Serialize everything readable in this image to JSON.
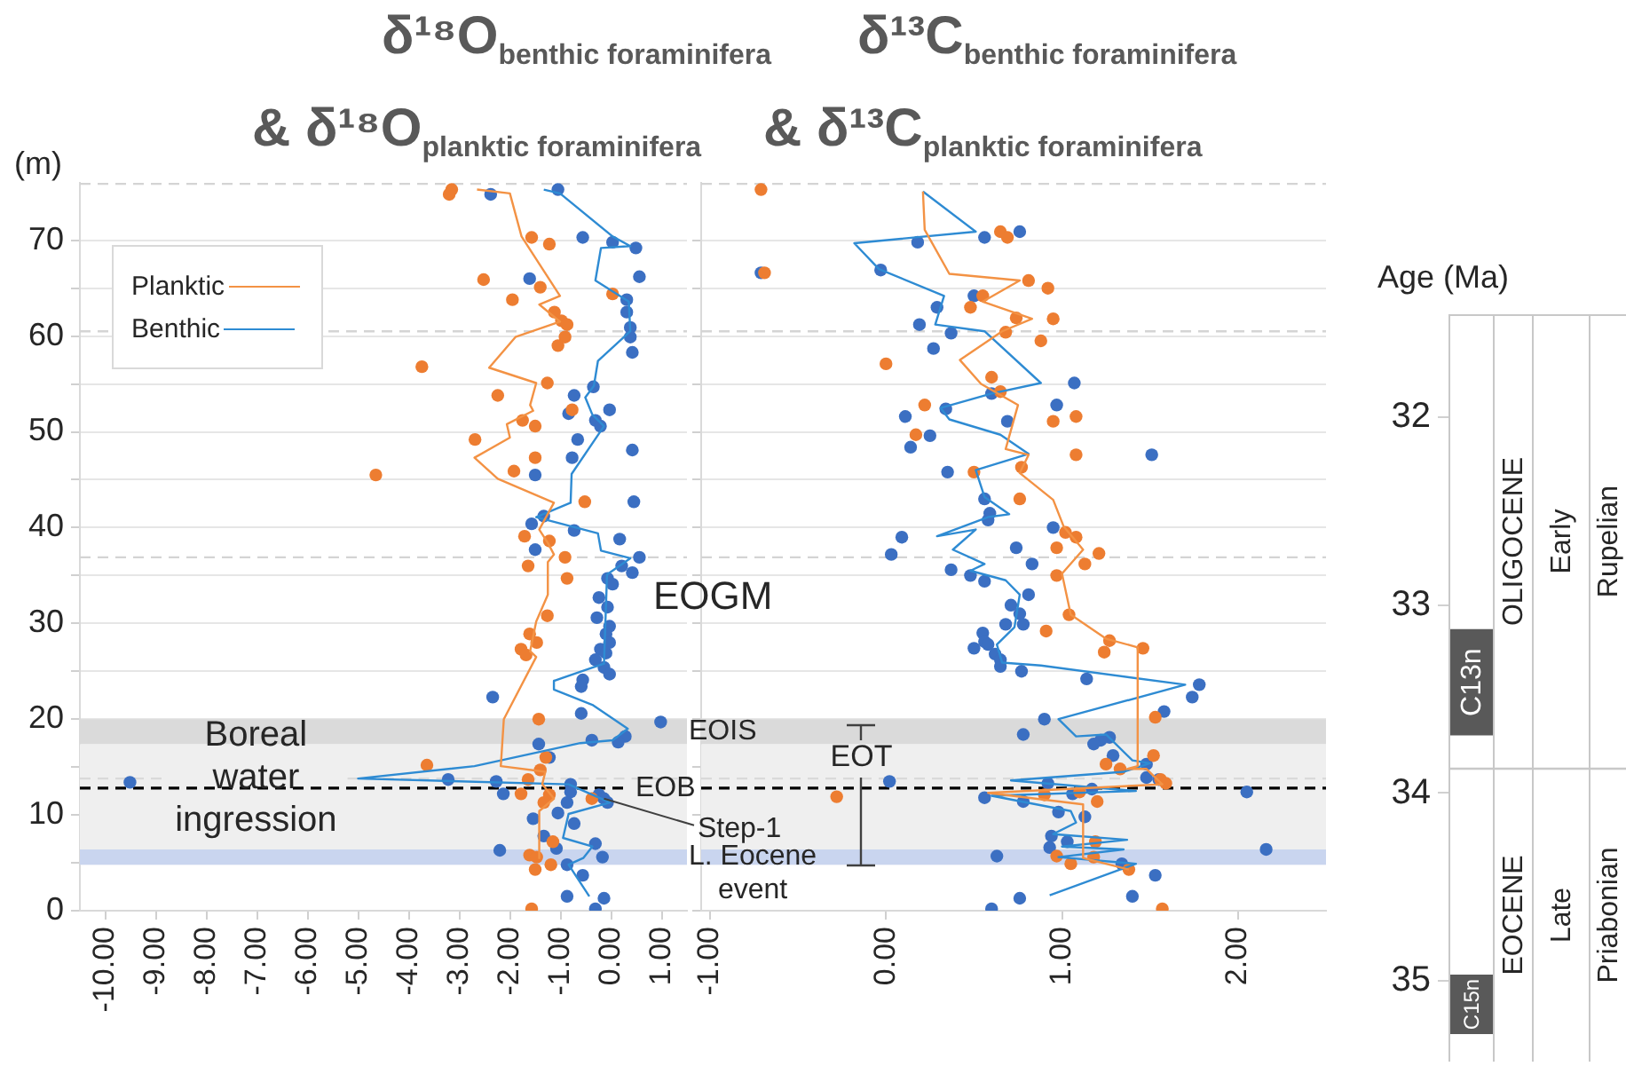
{
  "chart_data": [
    {
      "type": "line",
      "title": "δ¹⁸O$_{benthic foraminifera}$",
      "subtitle": "& δ¹⁸O$_{planktic foraminifera}$",
      "ylabel": "(m)",
      "legend": "top left",
      "grid": "y",
      "xlim": [
        -10.5,
        1.5
      ],
      "xticks": [
        {
          "value": -10,
          "label": "-10.00"
        },
        {
          "value": -9,
          "label": "-9.00"
        },
        {
          "value": -8,
          "label": "-8.00"
        },
        {
          "value": -7,
          "label": "-7.00"
        },
        {
          "value": -6,
          "label": "-6.00"
        },
        {
          "value": -5,
          "label": "-5.00"
        },
        {
          "value": -4,
          "label": "-4.00"
        },
        {
          "value": -3,
          "label": "-3.00"
        },
        {
          "value": -2,
          "label": "-2.00"
        },
        {
          "value": -1,
          "label": "-1.00"
        },
        {
          "value": 0,
          "label": "0.00"
        },
        {
          "value": 1,
          "label": "1.00"
        }
      ],
      "ylim": [
        0,
        76
      ],
      "yticks": [
        0,
        {
          "value": 5,
          "label": null
        },
        10,
        {
          "value": 15,
          "label": null
        },
        20,
        {
          "value": 25,
          "label": null
        },
        30,
        {
          "value": 35,
          "label": null
        },
        40,
        {
          "value": 45,
          "label": null
        },
        50,
        {
          "value": 55,
          "label": null
        },
        60,
        {
          "value": 65,
          "label": null
        },
        70
      ],
      "bands": [
        {
          "axis": "y",
          "from": 4.8,
          "to": 17.4,
          "color": "#efefef"
        },
        {
          "axis": "y",
          "from": 17.4,
          "to": 20.0,
          "color": "#dadada",
          "label": "EOIS"
        },
        {
          "axis": "y",
          "from": 4.8,
          "to": 6.4,
          "color": "#c9d5ef",
          "label": "L. Eocene event"
        }
      ],
      "ref_lines": [
        {
          "axis": "y",
          "value": 75.9,
          "color": "#d4d4d4",
          "line_style": "dashed"
        },
        {
          "axis": "y",
          "value": 60.5,
          "color": "#d4d4d4",
          "line_style": "dashed"
        },
        {
          "axis": "y",
          "value": 36.9,
          "color": "#d4d4d4",
          "line_style": "dashed"
        },
        {
          "axis": "y",
          "value": 13.8,
          "color": "#d9d9d9",
          "line_style": "dashed",
          "label": "Boreal water ingression"
        },
        {
          "axis": "y",
          "value": 12.8,
          "color": "#000000",
          "line_style": "dashed",
          "label": "EOB"
        }
      ],
      "annotations": [
        "EOGM",
        {
          "text": "Step-1",
          "x": -0.14,
          "y": 11.7
        }
      ],
      "series": [
        {
          "name": "Planktic",
          "type": "line",
          "color": "#f39244",
          "marker": "none",
          "x": [
            -2.65,
            -2.0,
            -1.77,
            -1.01,
            -1.42,
            -1.01,
            -1.89,
            -2.41,
            -1.48,
            -1.6,
            -1.54,
            -2.06,
            -2.0,
            -2.7,
            -2.24,
            -1.13,
            -1.42,
            -1.25,
            -1.13,
            -1.25,
            -1.25,
            -1.48,
            -1.6,
            -1.48,
            -2.12,
            -2.18,
            -1.3,
            -1.36,
            -1.13,
            -1.42,
            -1.42
          ],
          "values": [
            75.3,
            74.9,
            70.4,
            64.2,
            63.3,
            61.5,
            59.9,
            56.7,
            55.1,
            52.8,
            52.2,
            50.8,
            49.4,
            47.3,
            45.1,
            42.6,
            39.8,
            38.4,
            37.2,
            36.4,
            33.0,
            30.2,
            27.1,
            26.5,
            20.0,
            15.1,
            14.5,
            13.2,
            11.7,
            10.4,
            5.5
          ]
        },
        {
          "name": "Benthic",
          "type": "line",
          "color": "#2e8bd3",
          "marker": "none",
          "x": [
            -1.33,
            -1.01,
            0.03,
            0.38,
            -0.2,
            -0.31,
            0.35,
            0.38,
            -0.26,
            -0.34,
            -0.51,
            -0.37,
            -0.14,
            -0.78,
            -0.8,
            -1.48,
            -0.26,
            -0.2,
            0.38,
            -0.08,
            -0.14,
            -1.13,
            -1.13,
            -0.37,
            0.33,
            0.03,
            -0.61,
            -2.7,
            -5.0,
            -0.84,
            -0.02,
            -0.84,
            -0.95,
            -0.37,
            -0.55,
            -0.84,
            -0.43
          ],
          "values": [
            75.3,
            74.9,
            70.4,
            69.4,
            69.2,
            65.8,
            63.6,
            60.5,
            57.4,
            54.8,
            53.6,
            51.8,
            50.6,
            45.6,
            42.6,
            41.1,
            39.4,
            37.6,
            36.8,
            35.1,
            25.8,
            24.0,
            23.1,
            21.5,
            19.0,
            17.8,
            17.5,
            15.1,
            13.8,
            13.2,
            11.3,
            10.1,
            7.6,
            6.7,
            5.5,
            4.8,
            1.5
          ]
        },
        {
          "type": "scatter",
          "color": "#ed7d31",
          "marker": "circle",
          "x": [
            -3.15,
            -3.2,
            -1.57,
            -1.22,
            -2.52,
            -1.4,
            0.03,
            -1.95,
            -1.12,
            -0.98,
            -0.87,
            -0.91,
            -1.05,
            -3.74,
            -1.26,
            -2.24,
            -0.77,
            -1.75,
            -1.5,
            -2.69,
            -1.5,
            -1.92,
            -4.65,
            -0.52,
            -1.71,
            -1.22,
            -0.91,
            -1.64,
            -0.87,
            -1.26,
            -1.61,
            -1.47,
            -1.78,
            -1.68,
            -1.43,
            -3.64,
            -1.29,
            -1.4,
            -1.64,
            -1.78,
            -1.22,
            -1.33,
            -0.38,
            -1.15,
            -1.61,
            -1.47,
            -1.19,
            -1.5,
            -1.57
          ],
          "values": [
            75.3,
            74.8,
            70.3,
            69.6,
            65.9,
            65.1,
            64.4,
            63.8,
            62.5,
            61.6,
            61.2,
            59.9,
            59.0,
            56.8,
            55.1,
            53.8,
            52.3,
            51.2,
            50.6,
            49.2,
            47.3,
            45.9,
            45.5,
            42.7,
            39.1,
            38.6,
            36.9,
            36.0,
            34.7,
            30.8,
            28.9,
            28.0,
            27.3,
            26.7,
            20.0,
            15.2,
            16.0,
            14.7,
            13.7,
            12.2,
            12.1,
            11.3,
            11.7,
            7.2,
            5.8,
            5.6,
            4.8,
            4.3,
            0.2
          ]
        },
        {
          "type": "scatter",
          "color": "#3b6fc2",
          "marker": "circle",
          "x": [
            -1.05,
            -2.38,
            -0.56,
            0.03,
            0.49,
            0.56,
            -1.61,
            0.31,
            0.31,
            0.38,
            0.38,
            0.42,
            -0.35,
            -0.73,
            -0.03,
            -0.84,
            -0.31,
            -0.21,
            -0.66,
            0.42,
            -0.77,
            -1.5,
            0.45,
            -1.33,
            -1.57,
            -0.73,
            0.17,
            -1.5,
            0.56,
            0.21,
            0.42,
            -0.07,
            0.03,
            -0.24,
            -0.07,
            -0.28,
            -0.03,
            -0.1,
            -0.03,
            -0.21,
            -0.1,
            -0.31,
            -0.14,
            -0.03,
            -0.56,
            -0.59,
            -2.34,
            -0.59,
            0.98,
            0.28,
            -0.38,
            0.14,
            -1.43,
            -1.22,
            -9.51,
            -3.22,
            -2.27,
            -2.13,
            -0.8,
            -0.8,
            -0.87,
            -0.24,
            -0.14,
            -0.07,
            -1.05,
            -1.54,
            -0.73,
            -1.33,
            -1.08,
            -0.31,
            -0.17,
            -2.2,
            -0.87,
            -0.56,
            -0.87,
            -0.14,
            -0.31
          ],
          "values": [
            75.3,
            74.8,
            70.3,
            69.8,
            69.2,
            66.2,
            66.0,
            63.8,
            62.5,
            60.9,
            59.9,
            58.3,
            54.7,
            53.8,
            52.3,
            51.9,
            51.2,
            50.6,
            49.2,
            48.1,
            47.3,
            45.5,
            42.7,
            41.2,
            40.4,
            39.7,
            38.8,
            37.7,
            36.9,
            36.0,
            35.3,
            34.7,
            34.1,
            32.7,
            31.7,
            30.6,
            29.7,
            28.9,
            28.0,
            27.3,
            26.9,
            26.2,
            25.4,
            24.7,
            24.1,
            23.4,
            22.3,
            20.6,
            19.7,
            18.2,
            17.8,
            17.6,
            17.4,
            16.0,
            13.4,
            13.7,
            13.5,
            12.2,
            13.2,
            12.4,
            11.3,
            12.1,
            11.7,
            11.3,
            10.2,
            9.6,
            9.1,
            7.8,
            6.5,
            7.0,
            5.6,
            6.3,
            4.8,
            3.7,
            1.5,
            1.3,
            0.2
          ]
        }
      ]
    },
    {
      "type": "line",
      "title": "δ¹³C$_{benthic foraminifera}$",
      "subtitle": "& δ¹³C$_{planktic foraminifera}$",
      "legend": false,
      "grid": "y",
      "tick_labels": "x",
      "xlim": [
        -1.05,
        2.5
      ],
      "xticks": [
        {
          "value": -1,
          "label": "-1.00"
        },
        {
          "value": 0,
          "label": "0.00"
        },
        {
          "value": 1,
          "label": "1.00"
        },
        {
          "value": 2,
          "label": "2.00"
        }
      ],
      "ylim": [
        0,
        76
      ],
      "yticks": [
        0,
        5,
        10,
        15,
        20,
        25,
        30,
        35,
        40,
        45,
        50,
        55,
        60,
        65,
        70
      ],
      "bands": [
        {
          "axis": "y",
          "from": 4.8,
          "to": 17.4,
          "color": "#efefef"
        },
        {
          "axis": "y",
          "from": 17.4,
          "to": 20.0,
          "color": "#dadada"
        },
        {
          "axis": "y",
          "from": 4.8,
          "to": 6.4,
          "color": "#c9d5ef"
        }
      ],
      "annotations": [
        {
          "text": "EOT",
          "x": -0.14,
          "y": 4.8
        }
      ],
      "ref_lines": [
        {
          "axis": "y",
          "value": 75.9,
          "color": "#d4d4d4",
          "line_style": "dashed"
        },
        {
          "axis": "y",
          "value": 60.5,
          "color": "#d4d4d4",
          "line_style": "dashed"
        },
        {
          "axis": "y",
          "value": 36.9,
          "color": "#d4d4d4",
          "line_style": "dashed"
        },
        {
          "axis": "y",
          "value": 13.8,
          "color": "#d9d9d9",
          "line_style": "dashed"
        },
        {
          "axis": "y",
          "value": 12.8,
          "color": "#000000",
          "line_style": "dashed"
        }
      ],
      "series": [
        {
          "type": "line",
          "color": "#f39244",
          "marker": "none",
          "x": [
            0.21,
            0.22,
            0.36,
            0.76,
            0.55,
            0.83,
            0.66,
            0.42,
            0.54,
            0.75,
            0.68,
            0.81,
            0.76,
            0.95,
            1.01,
            1.12,
            1.0,
            1.05,
            1.25,
            1.43,
            1.43,
            1.37,
            1.48,
            1.57,
            0.58,
            1.12,
            1.12,
            1.38
          ],
          "values": [
            75.1,
            71.1,
            66.5,
            65.8,
            63.6,
            61.8,
            60.5,
            57.5,
            55.0,
            52.8,
            48.2,
            47.6,
            45.7,
            42.9,
            40.1,
            37.7,
            35.2,
            30.9,
            28.4,
            27.5,
            15.1,
            14.8,
            14.8,
            13.2,
            12.3,
            11.1,
            5.5,
            4.3
          ]
        },
        {
          "type": "line",
          "color": "#2e8bd3",
          "marker": "none",
          "x": [
            0.21,
            0.51,
            -0.18,
            -0.04,
            0.33,
            0.28,
            0.56,
            0.88,
            0.6,
            0.31,
            0.36,
            0.65,
            0.81,
            0.51,
            0.56,
            0.7,
            0.58,
            0.29,
            0.51,
            0.38,
            0.56,
            0.48,
            0.68,
            0.76,
            0.73,
            0.63,
            0.66,
            0.88,
            1.7,
            0.98,
            1.08,
            1.25,
            1.4,
            1.5,
            1.35,
            0.71,
            1.42,
            0.6,
            1.05,
            1.08,
            0.95,
            1.37,
            1.0,
            1.35,
            0.98,
            1.42,
            0.93
          ],
          "values": [
            75.1,
            70.9,
            69.7,
            67.0,
            64.2,
            61.2,
            60.5,
            55.1,
            54.0,
            52.5,
            51.3,
            49.7,
            47.7,
            46.0,
            43.2,
            41.4,
            41.1,
            39.1,
            39.8,
            37.7,
            36.2,
            35.5,
            34.5,
            33.0,
            29.6,
            27.8,
            25.9,
            25.6,
            23.6,
            20.0,
            18.2,
            18.4,
            15.7,
            15.4,
            14.5,
            13.6,
            12.5,
            12.0,
            10.4,
            9.2,
            8.0,
            7.4,
            6.7,
            6.4,
            5.6,
            4.9,
            1.6
          ]
        },
        {
          "type": "scatter",
          "color": "#ed7d31",
          "marker": "circle",
          "x": [
            0.65,
            0.69,
            0.81,
            0.92,
            0.55,
            0.48,
            0.74,
            0.95,
            0.68,
            0.88,
            0.0,
            0.6,
            0.65,
            0.22,
            1.08,
            0.95,
            0.17,
            1.08,
            0.77,
            0.5,
            0.76,
            1.02,
            1.08,
            0.97,
            1.21,
            1.13,
            0.97,
            1.04,
            0.91,
            1.27,
            1.46,
            1.24,
            1.53,
            1.52,
            1.25,
            1.33,
            1.56,
            1.59,
            -0.28,
            0.9,
            1.1,
            1.2,
            1.19,
            0.97,
            1.18,
            1.05,
            1.38,
            1.57,
            -0.71,
            -0.69
          ],
          "values": [
            70.9,
            70.3,
            65.8,
            65.0,
            64.2,
            63.0,
            61.9,
            61.8,
            60.4,
            59.5,
            57.1,
            55.7,
            54.2,
            52.8,
            51.6,
            51.1,
            49.7,
            47.6,
            46.3,
            45.8,
            43.0,
            39.5,
            39.0,
            37.9,
            37.3,
            36.2,
            35.0,
            30.9,
            29.2,
            28.2,
            27.4,
            27.0,
            20.2,
            16.2,
            15.3,
            14.8,
            13.7,
            13.3,
            11.9,
            12.1,
            12.4,
            11.4,
            7.2,
            5.7,
            5.6,
            4.9,
            4.3,
            0.2,
            75.3,
            66.6
          ]
        },
        {
          "type": "scatter",
          "color": "#3b6fc2",
          "marker": "circle",
          "x": [
            0.18,
            0.56,
            0.76,
            -0.03,
            0.5,
            0.29,
            0.19,
            0.37,
            0.27,
            1.07,
            0.6,
            0.97,
            0.34,
            0.11,
            0.69,
            0.25,
            0.14,
            1.51,
            0.35,
            0.56,
            0.59,
            0.58,
            0.95,
            0.09,
            0.03,
            0.74,
            0.83,
            0.37,
            0.48,
            0.56,
            0.81,
            0.71,
            0.76,
            0.68,
            0.78,
            0.55,
            0.56,
            0.5,
            0.58,
            0.62,
            0.65,
            0.65,
            0.77,
            1.14,
            1.78,
            1.74,
            1.58,
            0.9,
            0.78,
            1.27,
            1.22,
            1.18,
            1.29,
            1.48,
            1.48,
            0.02,
            1.55,
            0.92,
            2.05,
            1.17,
            1.06,
            0.56,
            0.78,
            1.13,
            0.98,
            0.94,
            1.03,
            0.93,
            2.16,
            0.63,
            1.34,
            1.53,
            1.4,
            0.76,
            0.6,
            -0.71
          ],
          "values": [
            69.8,
            70.3,
            70.9,
            66.9,
            64.2,
            63.0,
            61.2,
            60.3,
            58.7,
            55.1,
            54.0,
            52.8,
            52.4,
            51.6,
            51.1,
            49.6,
            48.4,
            47.6,
            45.8,
            43.0,
            41.5,
            40.8,
            40.0,
            39.0,
            37.2,
            37.9,
            36.2,
            35.6,
            35.0,
            34.4,
            33.0,
            31.9,
            31.0,
            29.9,
            29.9,
            29.0,
            28.1,
            27.4,
            27.8,
            26.8,
            26.2,
            25.5,
            25.0,
            24.2,
            23.6,
            22.3,
            20.8,
            20.0,
            18.4,
            18.1,
            17.8,
            17.4,
            16.2,
            15.3,
            13.9,
            13.5,
            13.7,
            13.3,
            12.4,
            12.7,
            12.2,
            11.8,
            11.4,
            9.8,
            10.3,
            7.8,
            7.2,
            6.6,
            6.4,
            5.7,
            4.9,
            3.7,
            1.5,
            1.3,
            0.2,
            66.6
          ]
        }
      ]
    },
    {
      "type": "bar",
      "ylabel": "Age (Ma)",
      "legend": false,
      "grid": false,
      "categories": [
        null
      ],
      "ylim": [
        35.43,
        31.45
      ],
      "yticks": [
        32,
        33,
        34,
        35
      ],
      "ref_lines": [
        {
          "axis": "y",
          "value": 33.87,
          "color": "#c8c8c8"
        }
      ],
      "annotations": [
        "OLIGOCENE",
        "Early",
        "Rupelian",
        "EOCENE",
        "Late",
        "Priabonian"
      ],
      "series": [
        {
          "color": "#595959",
          "values": [
            0.56
          ],
          "base": [
            33.13
          ],
          "value_labels": [
            "C13n"
          ]
        },
        {
          "color": "#595959",
          "values": [
            0.31
          ],
          "base": [
            34.97
          ],
          "value_labels": [
            "C15n"
          ]
        }
      ]
    }
  ]
}
